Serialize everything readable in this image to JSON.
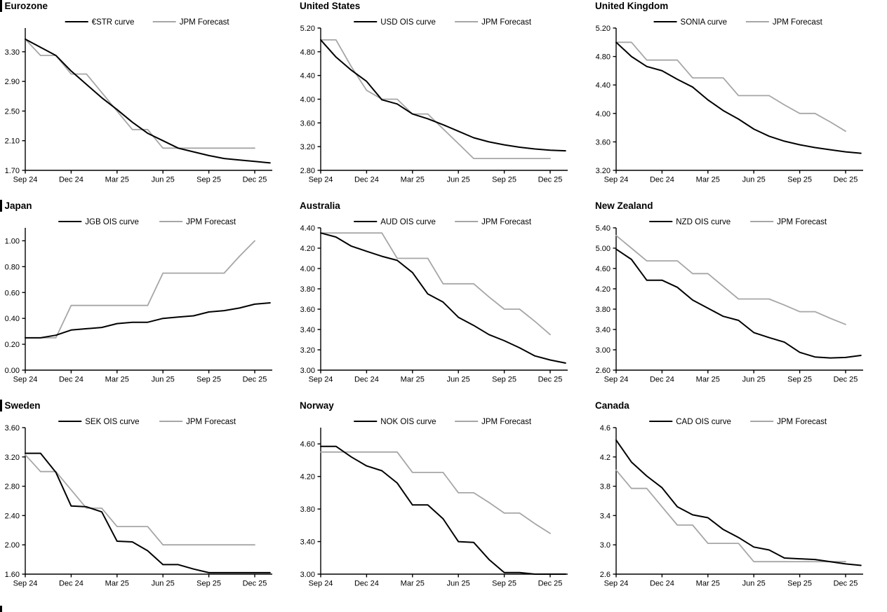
{
  "page": {
    "description": "Policy rate OIS curves versus JPM forecasts for nine economies",
    "series_colors": {
      "market": "#000000",
      "forecast": "#a6a6a6"
    }
  },
  "chart_data": [
    {
      "type": "line",
      "region": "Eurozone",
      "x_tick_labels": [
        "Sep 24",
        "Dec 24",
        "Mar 25",
        "Jun 25",
        "Sep 25",
        "Dec 25"
      ],
      "ymin": 1.7,
      "ymax": 3.62,
      "decimals": 2,
      "yticks": [
        1.7,
        2.1,
        2.5,
        2.9,
        3.3
      ],
      "grid": false,
      "legend_position": "top",
      "series": [
        {
          "name": "€STR curve",
          "color": "#000000",
          "values": [
            3.47,
            3.36,
            3.25,
            3.04,
            2.86,
            2.68,
            2.52,
            2.35,
            2.2,
            2.1,
            2.0,
            1.95,
            1.9,
            1.86,
            1.84,
            1.82,
            1.8
          ]
        },
        {
          "name": "JPM Forecast",
          "color": "#a6a6a6",
          "values": [
            3.47,
            3.25,
            3.25,
            3.0,
            3.0,
            2.75,
            2.5,
            2.25,
            2.25,
            2.0,
            2.0,
            2.0,
            2.0,
            2.0,
            2.0,
            2.0
          ]
        }
      ]
    },
    {
      "type": "line",
      "region": "United States",
      "x_tick_labels": [
        "Sep 24",
        "Dec 24",
        "Mar 25",
        "Jun 25",
        "Sep 25",
        "Dec 25"
      ],
      "ymin": 2.8,
      "ymax": 5.2,
      "decimals": 2,
      "yticks": [
        2.8,
        3.2,
        3.6,
        4.0,
        4.4,
        4.8,
        5.2
      ],
      "grid": false,
      "legend_position": "top",
      "series": [
        {
          "name": "USD OIS curve",
          "color": "#000000",
          "values": [
            5.0,
            4.71,
            4.49,
            4.3,
            3.99,
            3.92,
            3.75,
            3.67,
            3.57,
            3.46,
            3.35,
            3.28,
            3.23,
            3.19,
            3.16,
            3.14,
            3.13
          ]
        },
        {
          "name": "JPM Forecast",
          "color": "#a6a6a6",
          "values": [
            5.0,
            5.0,
            4.55,
            4.15,
            4.0,
            4.0,
            3.75,
            3.75,
            3.5,
            3.25,
            3.0,
            3.0,
            3.0,
            3.0,
            3.0,
            3.0
          ]
        }
      ]
    },
    {
      "type": "line",
      "region": "United Kingdom",
      "x_tick_labels": [
        "Sep 24",
        "Dec 24",
        "Mar 25",
        "Jun 25",
        "Sep 25",
        "Dec 25"
      ],
      "ymin": 3.2,
      "ymax": 5.2,
      "decimals": 2,
      "yticks": [
        3.2,
        3.6,
        4.0,
        4.4,
        4.8,
        5.2
      ],
      "grid": false,
      "legend_position": "top",
      "series": [
        {
          "name": "SONIA curve",
          "color": "#000000",
          "values": [
            5.0,
            4.8,
            4.66,
            4.6,
            4.48,
            4.37,
            4.19,
            4.04,
            3.92,
            3.78,
            3.68,
            3.61,
            3.56,
            3.52,
            3.49,
            3.46,
            3.44
          ]
        },
        {
          "name": "JPM Forecast",
          "color": "#a6a6a6",
          "values": [
            5.0,
            5.0,
            4.75,
            4.75,
            4.75,
            4.5,
            4.5,
            4.5,
            4.25,
            4.25,
            4.25,
            4.12,
            4.0,
            4.0,
            3.88,
            3.75
          ]
        }
      ]
    },
    {
      "type": "line",
      "region": "Japan",
      "x_tick_labels": [
        "Sep 24",
        "Dec 24",
        "Mar 25",
        "Jun 25",
        "Sep 25",
        "Dec 25"
      ],
      "ymin": 0.0,
      "ymax": 1.1,
      "decimals": 2,
      "yticks": [
        0.0,
        0.2,
        0.4,
        0.6,
        0.8,
        1.0
      ],
      "grid": false,
      "legend_position": "top",
      "series": [
        {
          "name": "JGB OIS curve",
          "color": "#000000",
          "values": [
            0.25,
            0.25,
            0.27,
            0.31,
            0.32,
            0.33,
            0.36,
            0.37,
            0.37,
            0.4,
            0.41,
            0.42,
            0.45,
            0.46,
            0.48,
            0.51,
            0.52
          ]
        },
        {
          "name": "JPM Forecast",
          "color": "#a6a6a6",
          "values": [
            0.25,
            0.25,
            0.25,
            0.5,
            0.5,
            0.5,
            0.5,
            0.5,
            0.5,
            0.75,
            0.75,
            0.75,
            0.75,
            0.75,
            0.88,
            1.0
          ]
        }
      ]
    },
    {
      "type": "line",
      "region": "Australia",
      "x_tick_labels": [
        "Sep 24",
        "Dec 24",
        "Mar 25",
        "Jun 25",
        "Sep 25",
        "Dec 25"
      ],
      "ymin": 3.0,
      "ymax": 4.4,
      "decimals": 2,
      "yticks": [
        3.0,
        3.2,
        3.4,
        3.6,
        3.8,
        4.0,
        4.2,
        4.4
      ],
      "grid": false,
      "legend_position": "top",
      "series": [
        {
          "name": "AUD OIS curve",
          "color": "#000000",
          "values": [
            4.35,
            4.31,
            4.22,
            4.17,
            4.12,
            4.08,
            3.96,
            3.75,
            3.67,
            3.52,
            3.44,
            3.35,
            3.29,
            3.22,
            3.14,
            3.1,
            3.07
          ]
        },
        {
          "name": "JPM Forecast",
          "color": "#a6a6a6",
          "values": [
            4.35,
            4.35,
            4.35,
            4.35,
            4.35,
            4.1,
            4.1,
            4.1,
            3.85,
            3.85,
            3.85,
            3.72,
            3.6,
            3.6,
            3.48,
            3.35
          ]
        }
      ]
    },
    {
      "type": "line",
      "region": "New Zealand",
      "x_tick_labels": [
        "Sep 24",
        "Dec 24",
        "Mar 25",
        "Jun 25",
        "Sep 25",
        "Dec 25"
      ],
      "ymin": 2.6,
      "ymax": 5.4,
      "decimals": 2,
      "yticks": [
        2.6,
        3.0,
        3.4,
        3.8,
        4.2,
        4.6,
        5.0,
        5.4
      ],
      "grid": false,
      "legend_position": "top",
      "series": [
        {
          "name": "NZD OIS curve",
          "color": "#000000",
          "values": [
            4.98,
            4.78,
            4.37,
            4.37,
            4.23,
            3.98,
            3.82,
            3.66,
            3.58,
            3.34,
            3.24,
            3.15,
            2.95,
            2.86,
            2.84,
            2.85,
            2.89
          ]
        },
        {
          "name": "JPM Forecast",
          "color": "#a6a6a6",
          "values": [
            5.25,
            5.0,
            4.75,
            4.75,
            4.75,
            4.5,
            4.5,
            4.25,
            4.0,
            4.0,
            4.0,
            3.88,
            3.75,
            3.75,
            3.62,
            3.5
          ]
        }
      ]
    },
    {
      "type": "line",
      "region": "Sweden",
      "x_tick_labels": [
        "Sep 24",
        "Dec 24",
        "Mar 25",
        "Jun 25",
        "Sep 25",
        "Dec 25"
      ],
      "ymin": 1.6,
      "ymax": 3.6,
      "decimals": 2,
      "yticks": [
        1.6,
        2.0,
        2.4,
        2.8,
        3.2,
        3.6
      ],
      "grid": false,
      "legend_position": "top",
      "series": [
        {
          "name": "SEK OIS curve",
          "color": "#000000",
          "values": [
            3.25,
            3.25,
            2.99,
            2.53,
            2.52,
            2.45,
            2.05,
            2.04,
            1.92,
            1.73,
            1.73,
            1.67,
            1.62,
            1.62,
            1.62,
            1.62,
            1.62
          ]
        },
        {
          "name": "JPM Forecast",
          "color": "#a6a6a6",
          "values": [
            3.23,
            3.0,
            3.0,
            2.75,
            2.5,
            2.5,
            2.25,
            2.25,
            2.25,
            2.0,
            2.0,
            2.0,
            2.0,
            2.0,
            2.0,
            2.0
          ]
        }
      ]
    },
    {
      "type": "line",
      "region": "Norway",
      "x_tick_labels": [
        "Sep 24",
        "Dec 24",
        "Mar 25",
        "Jun 25",
        "Sep 25",
        "Dec 25"
      ],
      "ymin": 3.0,
      "ymax": 4.8,
      "decimals": 2,
      "yticks": [
        3.0,
        3.4,
        3.8,
        4.2,
        4.6
      ],
      "grid": false,
      "legend_position": "top",
      "series": [
        {
          "name": "NOK OIS curve",
          "color": "#000000",
          "values": [
            4.57,
            4.57,
            4.44,
            4.33,
            4.27,
            4.12,
            3.85,
            3.85,
            3.68,
            3.4,
            3.39,
            3.18,
            3.02,
            3.02,
            3.0,
            3.0,
            3.0
          ]
        },
        {
          "name": "JPM Forecast",
          "color": "#a6a6a6",
          "values": [
            4.5,
            4.5,
            4.5,
            4.5,
            4.5,
            4.5,
            4.25,
            4.25,
            4.25,
            4.0,
            4.0,
            3.88,
            3.75,
            3.75,
            3.62,
            3.5
          ]
        }
      ]
    },
    {
      "type": "line",
      "region": "Canada",
      "x_tick_labels": [
        "Sep 24",
        "Dec 24",
        "Mar 25",
        "Jun 25",
        "Sep 25",
        "Dec 25"
      ],
      "ymin": 2.6,
      "ymax": 4.6,
      "decimals": 1,
      "yticks": [
        2.6,
        3.0,
        3.4,
        3.8,
        4.2,
        4.6
      ],
      "grid": false,
      "legend_position": "top",
      "series": [
        {
          "name": "CAD OIS curve",
          "color": "#000000",
          "values": [
            4.43,
            4.13,
            3.94,
            3.78,
            3.52,
            3.41,
            3.37,
            3.21,
            3.1,
            2.97,
            2.93,
            2.82,
            2.81,
            2.8,
            2.77,
            2.74,
            2.72
          ]
        },
        {
          "name": "JPM Forecast",
          "color": "#a6a6a6",
          "values": [
            4.02,
            3.77,
            3.77,
            3.52,
            3.27,
            3.27,
            3.02,
            3.02,
            3.02,
            2.77,
            2.77,
            2.77,
            2.77,
            2.77,
            2.77,
            2.77
          ]
        }
      ]
    }
  ]
}
